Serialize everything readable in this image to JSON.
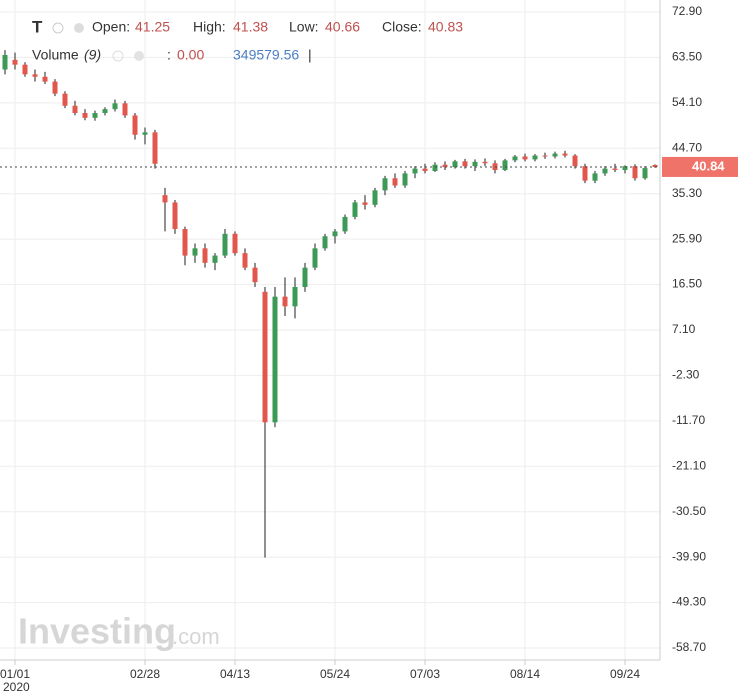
{
  "chart_data": {
    "type": "candlestick",
    "symbol": "T",
    "legend": {
      "open_label": "Open:",
      "open": 41.25,
      "high_label": "High:",
      "high": 41.38,
      "low_label": "Low:",
      "low": 40.66,
      "close_label": "Close:",
      "close": 40.83,
      "volume_label": "Volume",
      "volume_period": "(9)",
      "volume_sep": ":",
      "volume_ma": "0.00",
      "volume": 349579.56,
      "volume_end": "|"
    },
    "watermark": [
      "Investing",
      ".com"
    ],
    "year": "2020",
    "last_price": 40.84,
    "up_color": "#3d9a56",
    "down_color": "#e2574c",
    "last_price_color": "#f0736a",
    "categories": [
      null,
      "01/01",
      null,
      null,
      null,
      null,
      null,
      null,
      null,
      null,
      null,
      null,
      null,
      null,
      "02/28",
      null,
      null,
      null,
      null,
      null,
      null,
      null,
      null,
      "04/13",
      null,
      null,
      null,
      null,
      null,
      null,
      null,
      null,
      null,
      "05/24",
      null,
      null,
      null,
      null,
      null,
      null,
      null,
      null,
      "07/03",
      null,
      null,
      null,
      null,
      null,
      null,
      null,
      null,
      null,
      "08/14",
      null,
      null,
      null,
      null,
      null,
      null,
      null,
      null,
      null,
      "09/24",
      null,
      null,
      null
    ],
    "open": [
      61,
      63,
      62,
      60,
      59.5,
      58.5,
      56,
      53.5,
      52,
      51,
      52,
      52.8,
      54,
      51.5,
      47.5,
      48,
      35,
      33.5,
      28,
      22.5,
      24,
      21,
      22.5,
      27,
      23,
      20,
      15,
      -12,
      14,
      12,
      16,
      20,
      24,
      26.5,
      27.5,
      30.5,
      33.5,
      33,
      36,
      38.5,
      37,
      39.5,
      40.5,
      40,
      41.3,
      40.8,
      42,
      41,
      41.9,
      41.6,
      40.2,
      42.2,
      43,
      42.4,
      43.2,
      43,
      43.6,
      43.2,
      41,
      38,
      39.5,
      40.5,
      40.2,
      41,
      38.5,
      41.25
    ],
    "high": [
      65,
      64.5,
      62.5,
      61,
      60.5,
      59,
      56.5,
      54.5,
      52.8,
      52.5,
      53.2,
      54.8,
      54.5,
      52,
      49,
      48.5,
      36.5,
      34,
      28.5,
      25,
      25,
      23,
      28,
      27.5,
      24,
      21,
      16,
      16,
      18,
      18,
      21,
      25,
      27,
      28,
      31,
      34,
      35,
      36.5,
      39,
      39.5,
      40,
      41,
      41.5,
      41.8,
      42,
      42.3,
      42.5,
      42.4,
      42.6,
      42.2,
      42.5,
      43.3,
      43.6,
      43.5,
      43.8,
      44,
      44.2,
      43.5,
      41.5,
      40,
      41,
      41.5,
      41.2,
      41.4,
      41,
      41.38
    ],
    "low": [
      60,
      61,
      59.5,
      58.5,
      58,
      55.5,
      53,
      51.5,
      50.5,
      50.4,
      51.5,
      52.3,
      51,
      46.5,
      45.5,
      40.5,
      27.5,
      27,
      20.5,
      21,
      20,
      19.5,
      22,
      22.5,
      19.5,
      16,
      -40,
      -13,
      10,
      9.5,
      15,
      19.5,
      23.5,
      25,
      27,
      30,
      32,
      32.5,
      35,
      36.5,
      36.5,
      38.5,
      39.5,
      39.8,
      40.2,
      40.5,
      40.5,
      40,
      41,
      39.5,
      40,
      41.8,
      42,
      42,
      42.5,
      42.6,
      42.8,
      40.5,
      37.5,
      37.5,
      39,
      39.8,
      39.5,
      38,
      38.2,
      40.66
    ],
    "close": [
      64,
      62,
      60,
      59.5,
      58.5,
      56,
      53.5,
      52,
      51,
      52,
      52.8,
      54,
      51.5,
      47.5,
      48,
      41.5,
      33.5,
      28,
      22.5,
      24,
      21,
      22.5,
      27,
      23,
      20,
      17,
      -12,
      14,
      12,
      16,
      20,
      24,
      26.5,
      27.5,
      30.5,
      33.5,
      33,
      36,
      38.5,
      37,
      39.5,
      40.5,
      40,
      41.3,
      40.8,
      42,
      41,
      41.9,
      41.6,
      40.2,
      42.2,
      43,
      42.4,
      43.2,
      43,
      43.6,
      43.2,
      41,
      38,
      39.5,
      40.5,
      40.2,
      41,
      38.5,
      40.6,
      40.83
    ],
    "ylim": [
      -58.7,
      72.9
    ],
    "yticks": [
      {
        "value": 72.9,
        "label": "72.90"
      },
      {
        "value": 63.5,
        "label": "63.50"
      },
      {
        "value": 54.1,
        "label": "54.10"
      },
      {
        "value": 44.7,
        "label": "44.70"
      },
      {
        "value": 35.3,
        "label": "35.30"
      },
      {
        "value": 25.9,
        "label": "25.90"
      },
      {
        "value": 16.5,
        "label": "16.50"
      },
      {
        "value": 7.1,
        "label": "7.10"
      },
      {
        "value": -2.3,
        "label": "-2.30"
      },
      {
        "value": -11.7,
        "label": "-11.70"
      },
      {
        "value": -21.1,
        "label": "-21.10"
      },
      {
        "value": -30.5,
        "label": "-30.50"
      },
      {
        "value": -39.9,
        "label": "-39.90"
      },
      {
        "value": -49.3,
        "label": "-49.30"
      },
      {
        "value": -58.7,
        "label": "-58.70"
      }
    ],
    "grid": true
  }
}
